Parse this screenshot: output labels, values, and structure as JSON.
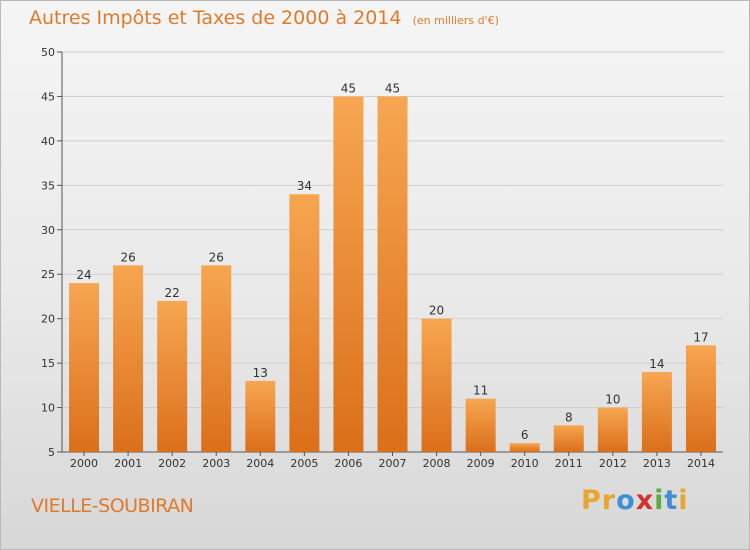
{
  "chart_data": {
    "type": "bar",
    "title": "Autres Impôts et Taxes de 2000 à 2014",
    "subtitle": "(en milliers d'€)",
    "categories": [
      "2000",
      "2001",
      "2002",
      "2003",
      "2004",
      "2005",
      "2006",
      "2007",
      "2008",
      "2009",
      "2010",
      "2011",
      "2012",
      "2013",
      "2014"
    ],
    "values": [
      24,
      26,
      22,
      26,
      13,
      34,
      45,
      45,
      20,
      11,
      6,
      8,
      10,
      14,
      17
    ],
    "ylim": [
      5,
      50
    ],
    "yticks": [
      5,
      10,
      15,
      20,
      25,
      30,
      35,
      40,
      45,
      50
    ],
    "grid": true,
    "bar_color_top": "#f7a651",
    "bar_color_bottom": "#db6f1a"
  },
  "commune": "VIELLE-SOUBIRAN",
  "logo": {
    "letters": [
      "P",
      "r",
      "o",
      "x",
      "i",
      "t",
      "i"
    ],
    "colors": [
      "#e9a62d",
      "#e9a62d",
      "#3f8fd6",
      "#d2312c",
      "#5cae3c",
      "#3f8fd6",
      "#e9a62d"
    ]
  }
}
